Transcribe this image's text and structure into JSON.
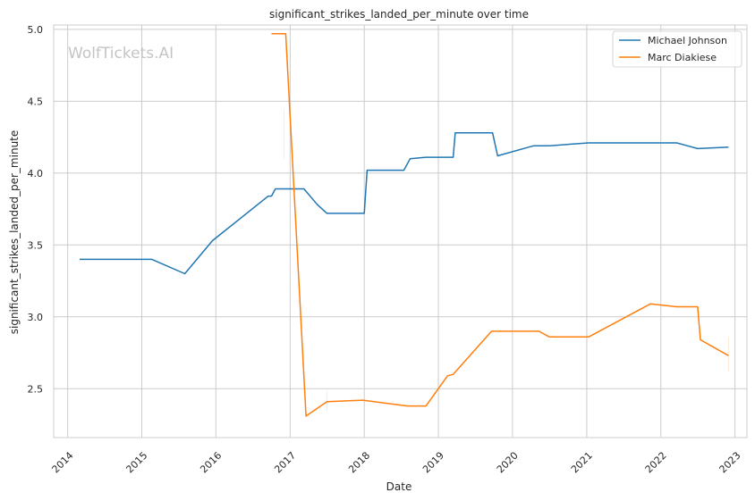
{
  "chart_data": {
    "type": "line",
    "title": "significant_strikes_landed_per_minute over time",
    "xlabel": "Date",
    "ylabel": "significant_strikes_landed_per_minute",
    "watermark": "WolfTickets.AI",
    "x_ticks": [
      "2014",
      "2015",
      "2016",
      "2017",
      "2018",
      "2019",
      "2020",
      "2021",
      "2022",
      "2023"
    ],
    "y_ticks": [
      "2.5",
      "3.0",
      "3.5",
      "4.0",
      "4.5",
      "5.0"
    ],
    "xlim": [
      "2013-10-24",
      "2023-03-01"
    ],
    "ylim": [
      2.16,
      5.03
    ],
    "grid": true,
    "legend_position": "upper right",
    "series": [
      {
        "name": "Michael Johnson",
        "color": "#1f77b4",
        "points": [
          [
            "2014-03-01",
            3.4
          ],
          [
            "2015-02-20",
            3.4
          ],
          [
            "2015-08-01",
            3.3
          ],
          [
            "2015-12-15",
            3.53
          ],
          [
            "2016-09-15",
            3.84
          ],
          [
            "2016-10-01",
            3.84
          ],
          [
            "2016-10-20",
            3.89
          ],
          [
            "2017-03-10",
            3.89
          ],
          [
            "2017-05-15",
            3.78
          ],
          [
            "2017-07-01",
            3.72
          ],
          [
            "2018-01-01",
            3.72
          ],
          [
            "2018-01-15",
            4.02
          ],
          [
            "2018-07-15",
            4.02
          ],
          [
            "2018-08-15",
            4.1
          ],
          [
            "2018-11-01",
            4.11
          ],
          [
            "2019-03-15",
            4.11
          ],
          [
            "2019-03-25",
            4.28
          ],
          [
            "2019-09-25",
            4.28
          ],
          [
            "2019-10-20",
            4.12
          ],
          [
            "2020-04-15",
            4.19
          ],
          [
            "2020-07-01",
            4.19
          ],
          [
            "2021-01-10",
            4.21
          ],
          [
            "2022-03-20",
            4.21
          ],
          [
            "2022-07-01",
            4.17
          ],
          [
            "2022-11-30",
            4.18
          ]
        ]
      },
      {
        "name": "Marc Diakiese",
        "color": "#ff7f0e",
        "points": [
          [
            "2016-10-01",
            4.97
          ],
          [
            "2016-12-10",
            4.97
          ],
          [
            "2017-03-20",
            2.31
          ],
          [
            "2017-07-01",
            2.41
          ],
          [
            "2017-12-25",
            2.42
          ],
          [
            "2018-08-01",
            2.38
          ],
          [
            "2018-11-01",
            2.38
          ],
          [
            "2019-02-15",
            2.59
          ],
          [
            "2019-03-15",
            2.6
          ],
          [
            "2019-09-20",
            2.9
          ],
          [
            "2020-05-10",
            2.9
          ],
          [
            "2020-07-01",
            2.86
          ],
          [
            "2021-01-10",
            2.86
          ],
          [
            "2021-11-10",
            3.09
          ],
          [
            "2022-03-20",
            3.07
          ],
          [
            "2022-07-01",
            3.07
          ],
          [
            "2022-07-15",
            2.84
          ],
          [
            "2022-11-30",
            2.73
          ]
        ]
      }
    ]
  }
}
